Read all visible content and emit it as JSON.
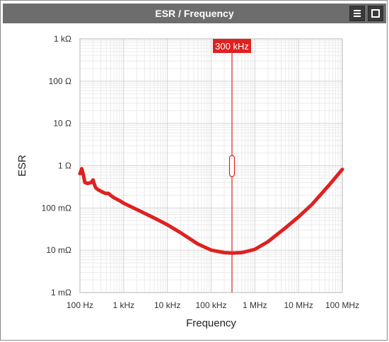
{
  "window": {
    "title": "ESR / Frequency",
    "menu_icon": "hamburger-menu-icon",
    "maximize_icon": "maximize-icon"
  },
  "colors": {
    "titlebar": "#6d6d6d",
    "curve": "#e02020",
    "cursor": "#e02020",
    "grid_major": "#d4d4d4",
    "grid_minor": "#ebebeb"
  },
  "chart_data": {
    "type": "line",
    "title": "",
    "xlabel": "Frequency",
    "ylabel": "ESR",
    "x_scale": "log",
    "y_scale": "log",
    "xlim": [
      100,
      100000000
    ],
    "ylim": [
      0.001,
      1000
    ],
    "grid": true,
    "x_ticks": [
      {
        "value": 100,
        "label": "100 Hz"
      },
      {
        "value": 1000,
        "label": "1 kHz"
      },
      {
        "value": 10000,
        "label": "10 kHz"
      },
      {
        "value": 100000,
        "label": "100 kHz"
      },
      {
        "value": 1000000,
        "label": "1 MHz"
      },
      {
        "value": 10000000,
        "label": "10 MHz"
      },
      {
        "value": 100000000,
        "label": "100 MHz"
      }
    ],
    "y_ticks": [
      {
        "value": 1000,
        "label": "1 kΩ"
      },
      {
        "value": 100,
        "label": "100 Ω"
      },
      {
        "value": 10,
        "label": "10 Ω"
      },
      {
        "value": 1,
        "label": "1 Ω"
      },
      {
        "value": 0.1,
        "label": "100 mΩ"
      },
      {
        "value": 0.01,
        "label": "10 mΩ"
      },
      {
        "value": 0.001,
        "label": "1 mΩ"
      }
    ],
    "cursor": {
      "x": 300000,
      "label": "300 kHz"
    },
    "series": [
      {
        "x": [
          100,
          110,
          120,
          130,
          150,
          180,
          200,
          210,
          230,
          260,
          300,
          350,
          400,
          450,
          500,
          600,
          800,
          1000,
          2000,
          5000,
          10000,
          20000,
          50000,
          100000,
          200000,
          300000,
          500000,
          1000000,
          2000000,
          5000000,
          10000000,
          20000000,
          50000000,
          100000000
        ],
        "y": [
          0.65,
          0.85,
          0.6,
          0.4,
          0.38,
          0.4,
          0.46,
          0.38,
          0.3,
          0.27,
          0.25,
          0.23,
          0.22,
          0.22,
          0.2,
          0.175,
          0.15,
          0.13,
          0.092,
          0.058,
          0.04,
          0.026,
          0.014,
          0.0101,
          0.0088,
          0.0086,
          0.0088,
          0.0105,
          0.016,
          0.034,
          0.062,
          0.12,
          0.35,
          0.82
        ]
      }
    ]
  }
}
